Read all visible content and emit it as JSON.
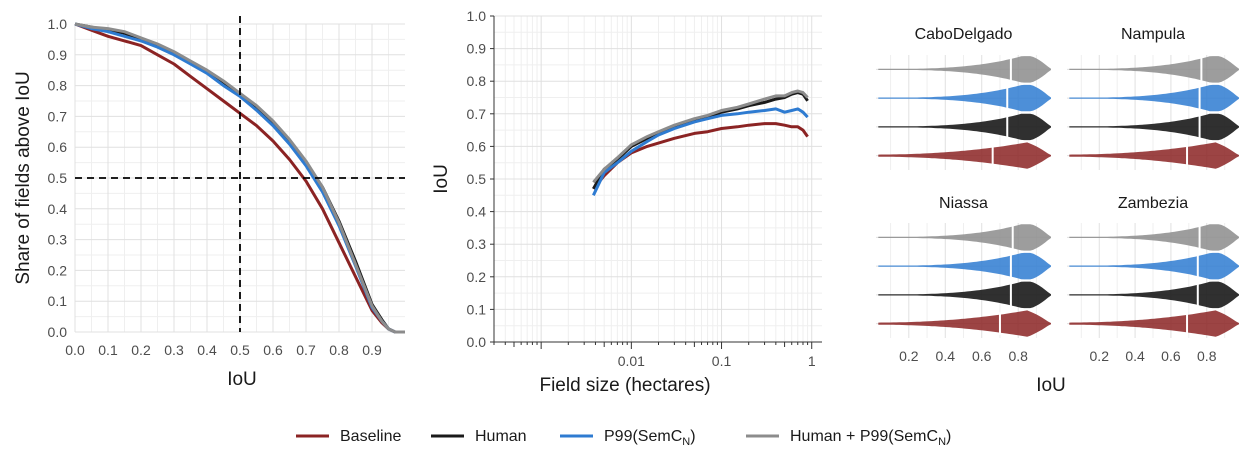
{
  "colors": {
    "Baseline": "#8B2323",
    "Human": "#1a1a1a",
    "P99(SemC_N)": "#2E7BD1",
    "Human + P99(SemC_N)": "#8C8C8C",
    "grid_major": "#e0e0e0",
    "grid_minor": "#efefef"
  },
  "legend": [
    {
      "key": "Baseline",
      "label": "Baseline"
    },
    {
      "key": "Human",
      "label": "Human"
    },
    {
      "key": "P99(SemC_N)",
      "label_main": "P99(SemC",
      "label_sub": "N",
      "label_end": ")"
    },
    {
      "key": "Human + P99(SemC_N)",
      "label_main": "Human + P99(SemC",
      "label_sub": "N",
      "label_end": ")"
    }
  ],
  "chart_data": [
    {
      "id": "share-above-iou",
      "type": "line",
      "xlabel": "IoU",
      "ylabel": "Share of fields above IoU",
      "xlim": [
        0,
        1
      ],
      "ylim": [
        0,
        1
      ],
      "x_ticks": [
        0.0,
        0.1,
        0.2,
        0.3,
        0.4,
        0.5,
        0.6,
        0.7,
        0.8,
        0.9
      ],
      "x_tick_labels": [
        "0.0",
        "0.1",
        "0.2",
        "0.3",
        "0.4",
        "0.5",
        "0.6",
        "0.7",
        "0.8",
        "0.9"
      ],
      "y_ticks": [
        0.0,
        0.1,
        0.2,
        0.3,
        0.4,
        0.5,
        0.6,
        0.7,
        0.8,
        0.9,
        1.0
      ],
      "y_tick_labels": [
        "0.0",
        "0.1",
        "0.2",
        "0.3",
        "0.4",
        "0.5",
        "0.6",
        "0.7",
        "0.8",
        "0.9",
        "1.0"
      ],
      "reference_lines": {
        "vertical_x": 0.5,
        "horizontal_y": 0.5,
        "style": "dashed"
      },
      "x": [
        0.0,
        0.05,
        0.1,
        0.15,
        0.2,
        0.25,
        0.3,
        0.35,
        0.4,
        0.45,
        0.5,
        0.55,
        0.6,
        0.65,
        0.7,
        0.75,
        0.8,
        0.85,
        0.9,
        0.93,
        0.95,
        0.97,
        1.0
      ],
      "series": [
        {
          "key": "Baseline",
          "values": [
            1.0,
            0.98,
            0.96,
            0.945,
            0.93,
            0.9,
            0.87,
            0.83,
            0.79,
            0.75,
            0.71,
            0.67,
            0.62,
            0.56,
            0.49,
            0.4,
            0.29,
            0.18,
            0.07,
            0.03,
            0.01,
            0.0,
            0.0
          ]
        },
        {
          "key": "Human",
          "values": [
            1.0,
            0.99,
            0.98,
            0.97,
            0.95,
            0.93,
            0.905,
            0.875,
            0.845,
            0.81,
            0.77,
            0.73,
            0.68,
            0.62,
            0.55,
            0.47,
            0.36,
            0.23,
            0.09,
            0.04,
            0.01,
            0.0,
            0.0
          ]
        },
        {
          "key": "P99(SemC_N)",
          "values": [
            1.0,
            0.985,
            0.975,
            0.96,
            0.945,
            0.925,
            0.9,
            0.87,
            0.84,
            0.8,
            0.765,
            0.72,
            0.67,
            0.61,
            0.54,
            0.455,
            0.345,
            0.215,
            0.08,
            0.035,
            0.01,
            0.0,
            0.0
          ]
        },
        {
          "key": "Human + P99(SemC_N)",
          "values": [
            1.0,
            0.99,
            0.985,
            0.975,
            0.955,
            0.935,
            0.91,
            0.88,
            0.85,
            0.815,
            0.775,
            0.735,
            0.685,
            0.625,
            0.555,
            0.47,
            0.355,
            0.22,
            0.085,
            0.035,
            0.01,
            0.0,
            0.0
          ]
        }
      ]
    },
    {
      "id": "iou-by-field-size",
      "type": "line",
      "xlabel": "Field size (hectares)",
      "ylabel": "IoU",
      "x_scale": "log",
      "xlim": [
        0.0003,
        1.3
      ],
      "ylim": [
        0,
        1
      ],
      "x_ticks": [
        0.01,
        0.1,
        1
      ],
      "x_tick_labels": [
        "0.01",
        "0.1",
        "1"
      ],
      "y_ticks": [
        0.0,
        0.1,
        0.2,
        0.3,
        0.4,
        0.5,
        0.6,
        0.7,
        0.8,
        0.9,
        1.0
      ],
      "y_tick_labels": [
        "0.0",
        "0.1",
        "0.2",
        "0.3",
        "0.4",
        "0.5",
        "0.6",
        "0.7",
        "0.8",
        "0.9",
        "1.0"
      ],
      "x": [
        0.0038,
        0.005,
        0.007,
        0.01,
        0.015,
        0.02,
        0.03,
        0.05,
        0.07,
        0.1,
        0.15,
        0.2,
        0.3,
        0.4,
        0.5,
        0.6,
        0.7,
        0.8,
        0.9
      ],
      "series": [
        {
          "key": "Baseline",
          "values": [
            0.47,
            0.51,
            0.55,
            0.58,
            0.6,
            0.61,
            0.625,
            0.64,
            0.645,
            0.655,
            0.66,
            0.665,
            0.67,
            0.67,
            0.665,
            0.66,
            0.66,
            0.65,
            0.63
          ]
        },
        {
          "key": "Human",
          "values": [
            0.47,
            0.53,
            0.56,
            0.6,
            0.625,
            0.64,
            0.66,
            0.68,
            0.69,
            0.705,
            0.715,
            0.725,
            0.735,
            0.745,
            0.75,
            0.76,
            0.765,
            0.76,
            0.74
          ]
        },
        {
          "key": "P99(SemC_N)",
          "values": [
            0.45,
            0.52,
            0.55,
            0.585,
            0.615,
            0.635,
            0.655,
            0.675,
            0.685,
            0.695,
            0.7,
            0.705,
            0.71,
            0.715,
            0.705,
            0.71,
            0.715,
            0.705,
            0.69
          ]
        },
        {
          "key": "Human + P99(SemC_N)",
          "values": [
            0.49,
            0.53,
            0.565,
            0.605,
            0.63,
            0.645,
            0.665,
            0.685,
            0.695,
            0.71,
            0.72,
            0.73,
            0.745,
            0.755,
            0.755,
            0.765,
            0.77,
            0.765,
            0.75
          ]
        }
      ]
    },
    {
      "id": "iou-by-province",
      "type": "violin",
      "xlabel": "IoU",
      "xlim": [
        0.02,
        0.98
      ],
      "x_ticks": [
        0.2,
        0.4,
        0.6,
        0.8
      ],
      "x_tick_labels": [
        "0.2",
        "0.4",
        "0.6",
        "0.8"
      ],
      "series_order": [
        "Human + P99(SemC_N)",
        "P99(SemC_N)",
        "Human",
        "Baseline"
      ],
      "facets": [
        {
          "label": "CaboDelgado",
          "medians": {
            "Human + P99(SemC_N)": 0.76,
            "P99(SemC_N)": 0.74,
            "Human": 0.74,
            "Baseline": 0.66
          }
        },
        {
          "label": "Nampula",
          "medians": {
            "Human + P99(SemC_N)": 0.77,
            "P99(SemC_N)": 0.76,
            "Human": 0.76,
            "Baseline": 0.69
          }
        },
        {
          "label": "Niassa",
          "medians": {
            "Human + P99(SemC_N)": 0.77,
            "P99(SemC_N)": 0.76,
            "Human": 0.76,
            "Baseline": 0.7
          }
        },
        {
          "label": "Zambezia",
          "medians": {
            "Human + P99(SemC_N)": 0.76,
            "P99(SemC_N)": 0.75,
            "Human": 0.75,
            "Baseline": 0.69
          }
        }
      ]
    }
  ]
}
